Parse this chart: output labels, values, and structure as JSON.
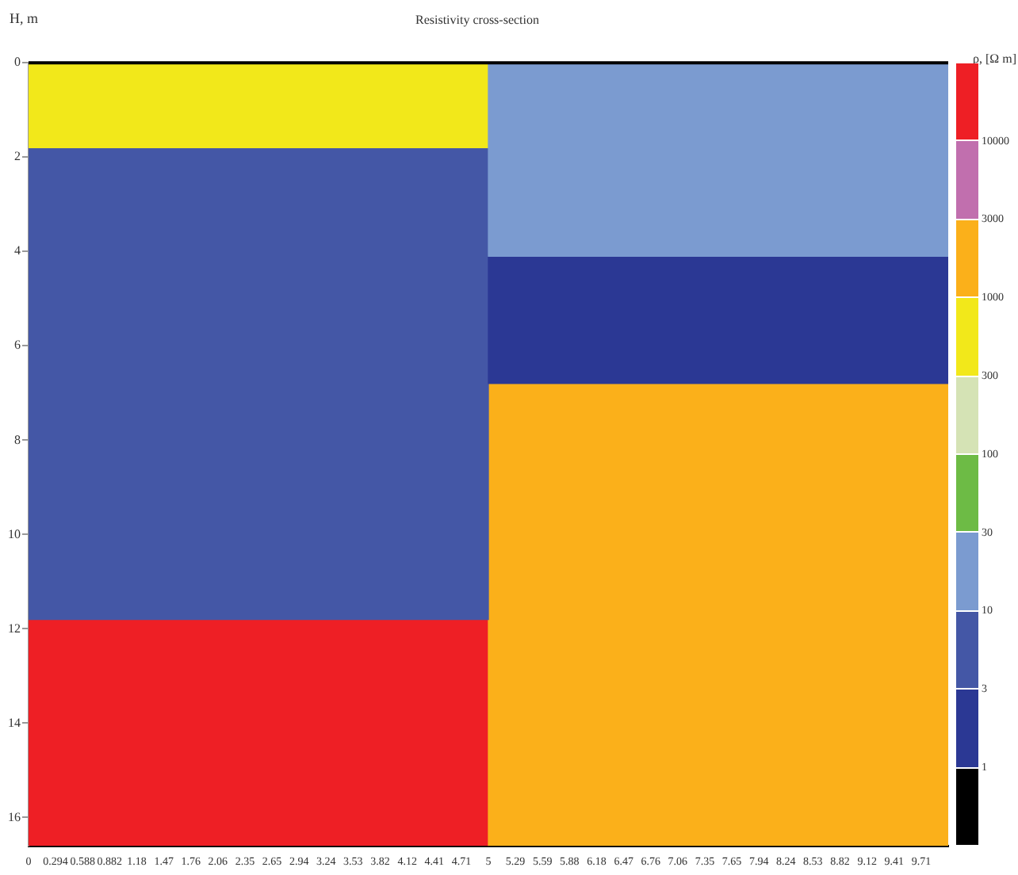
{
  "chart_data": {
    "type": "bar",
    "stacked": true,
    "title": "Resistivity cross-section",
    "ylabel": "H, m",
    "clabel": "ρ, [Ω m]",
    "x": [
      2.5,
      7.5
    ],
    "xlim": [
      0,
      10
    ],
    "xticks": [
      0,
      {
        "value": 0.294,
        "label": "0.294"
      },
      {
        "value": 0.588,
        "label": "0.588"
      },
      {
        "value": 0.882,
        "label": "0.882"
      },
      {
        "value": 1.176,
        "label": "1.18"
      },
      {
        "value": 1.471,
        "label": "1.47"
      },
      {
        "value": 1.765,
        "label": "1.76"
      },
      {
        "value": 2.059,
        "label": "2.06"
      },
      {
        "value": 2.353,
        "label": "2.35"
      },
      {
        "value": 2.647,
        "label": "2.65"
      },
      {
        "value": 2.941,
        "label": "2.94"
      },
      {
        "value": 3.235,
        "label": "3.24"
      },
      {
        "value": 3.529,
        "label": "3.53"
      },
      {
        "value": 3.824,
        "label": "3.82"
      },
      {
        "value": 4.118,
        "label": "4.12"
      },
      {
        "value": 4.412,
        "label": "4.41"
      },
      {
        "value": 4.706,
        "label": "4.71"
      },
      5,
      {
        "value": 5.294,
        "label": "5.29"
      },
      {
        "value": 5.588,
        "label": "5.59"
      },
      {
        "value": 5.882,
        "label": "5.88"
      },
      {
        "value": 6.176,
        "label": "6.18"
      },
      {
        "value": 6.471,
        "label": "6.47"
      },
      {
        "value": 6.765,
        "label": "6.76"
      },
      {
        "value": 7.059,
        "label": "7.06"
      },
      {
        "value": 7.353,
        "label": "7.35"
      },
      {
        "value": 7.647,
        "label": "7.65"
      },
      {
        "value": 7.941,
        "label": "7.94"
      },
      {
        "value": 8.235,
        "label": "8.24"
      },
      {
        "value": 8.529,
        "label": "8.53"
      },
      {
        "value": 8.824,
        "label": "8.82"
      },
      {
        "value": 9.118,
        "label": "9.12"
      },
      {
        "value": 9.412,
        "label": "9.41"
      },
      {
        "value": 9.706,
        "label": "9.71"
      }
    ],
    "ylim": [
      16.6,
      0
    ],
    "yticks": [
      0,
      2,
      4,
      6,
      8,
      10,
      12,
      14,
      16
    ],
    "series": [
      {
        "colors": [
          "#f2e81a",
          "#7b9bd0"
        ],
        "values": [
          1.8,
          4.1
        ]
      },
      {
        "colors": [
          "#4457a6",
          "#2b3894"
        ],
        "values": [
          10.0,
          2.7
        ]
      },
      {
        "colors": [
          "#ee1f25",
          "#fbb01a"
        ],
        "values": [
          4.8,
          9.8
        ]
      }
    ],
    "annotations": [
      "1",
      "3",
      "10",
      "30",
      "100",
      "300",
      "1000",
      "3000",
      "10000"
    ],
    "grid": false,
    "legend": false
  }
}
